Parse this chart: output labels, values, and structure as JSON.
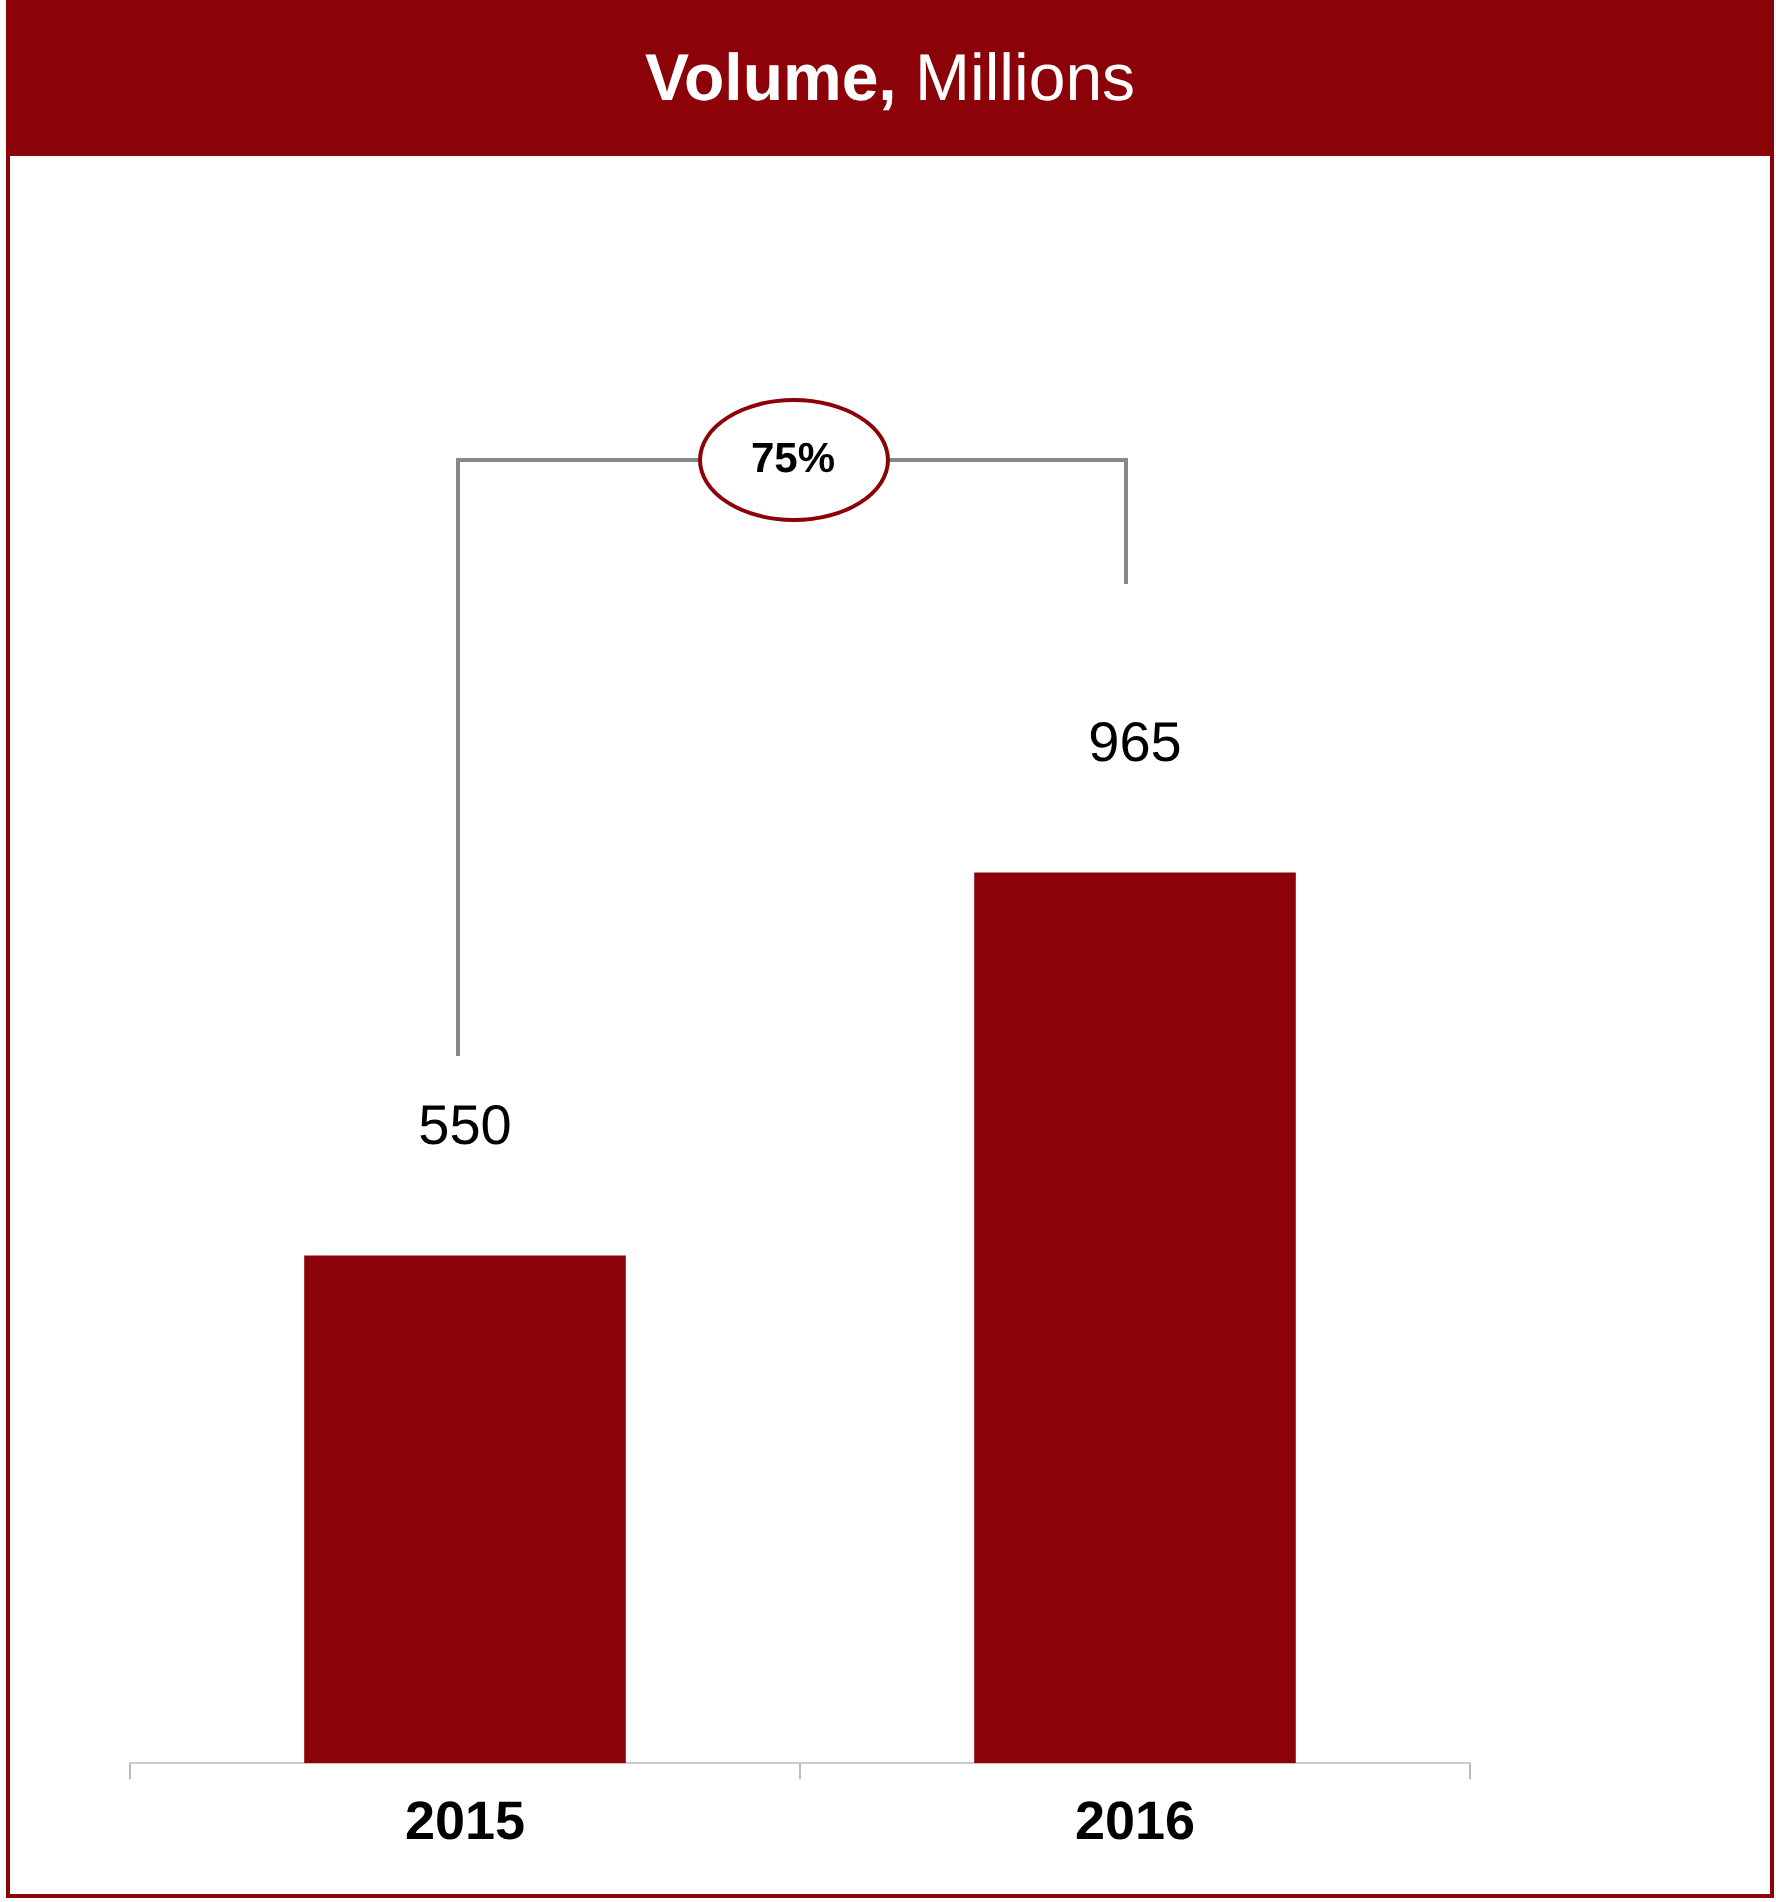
{
  "chart_data": {
    "type": "bar",
    "title": "Volume, Millions",
    "categories": [
      "2015",
      "2016"
    ],
    "values": [
      550,
      965
    ],
    "color": "#8b0309",
    "data_labels": true,
    "annotations": [
      "75%"
    ],
    "grid": false,
    "legend": false
  }
}
